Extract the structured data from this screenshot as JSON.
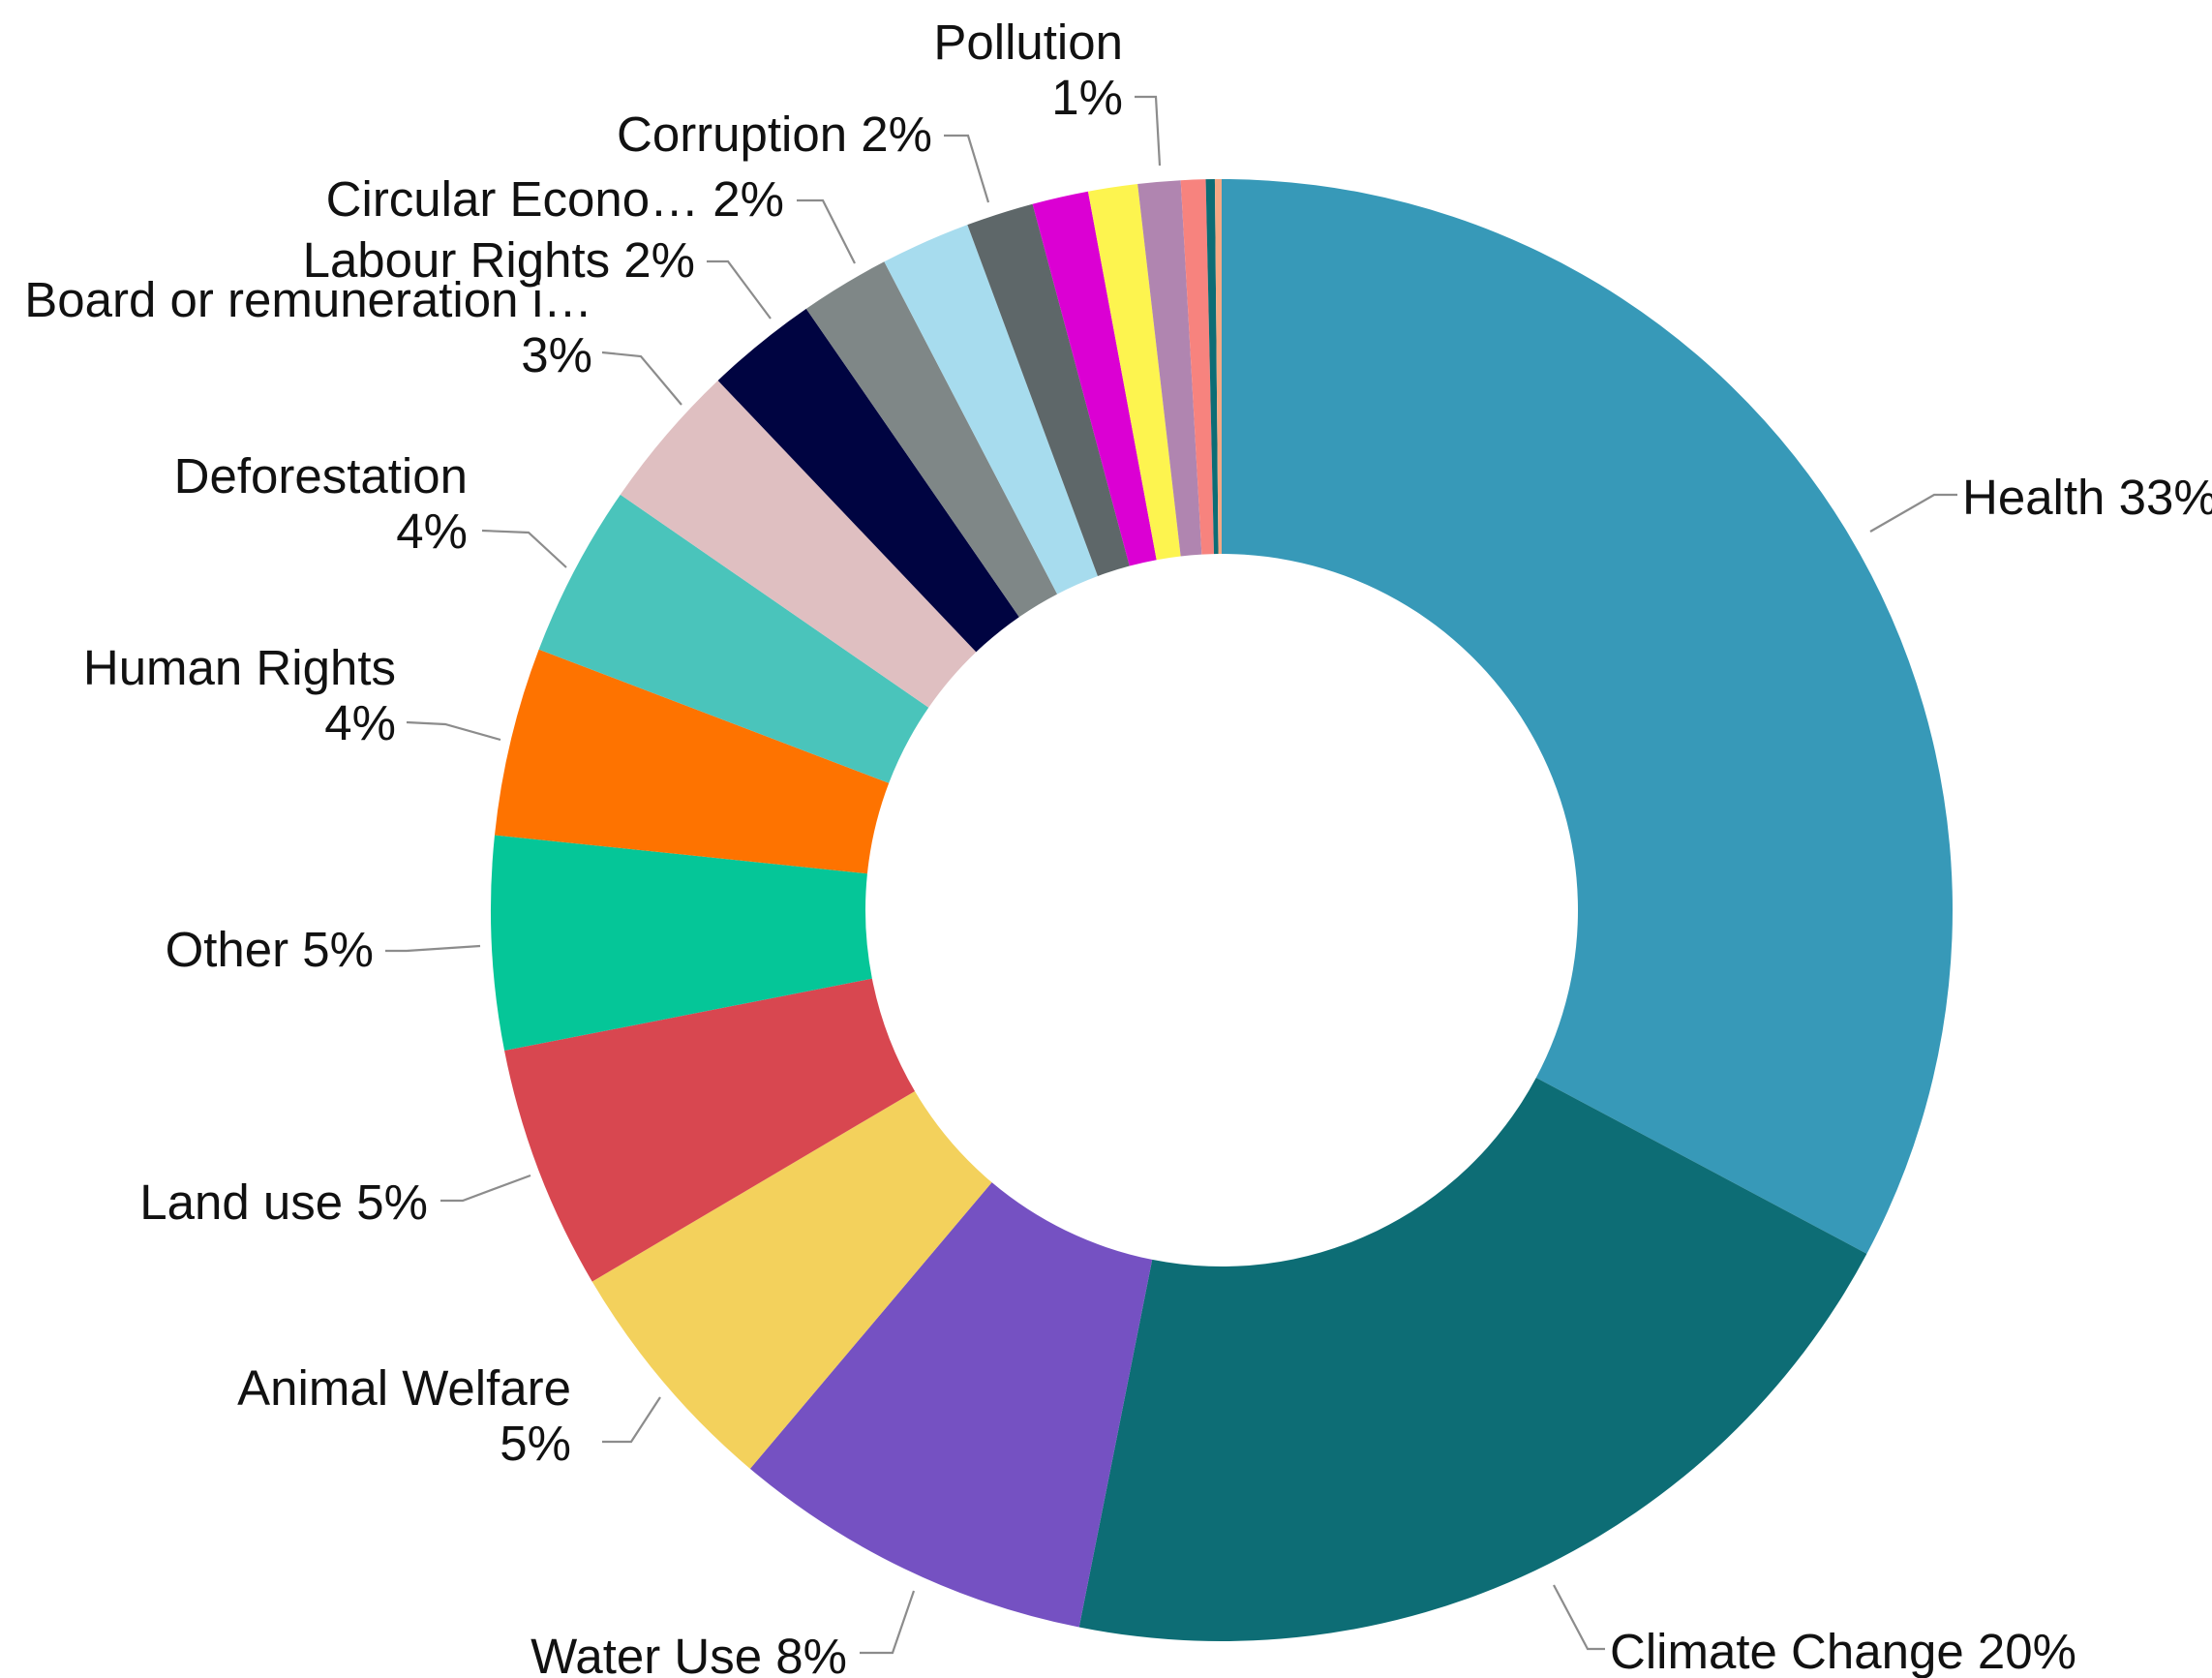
{
  "chart_data": {
    "type": "pie",
    "donut": true,
    "legend": "none",
    "slices": [
      {
        "name": "Health",
        "value": 33.05,
        "color": "#3799b8",
        "label_lines": [
          "Health 33%"
        ]
      },
      {
        "name": "Climate Change",
        "value": 20.5,
        "color": "#0d6d75",
        "label_lines": [
          "Climate Change 20%"
        ]
      },
      {
        "name": "Water Use",
        "value": 8.1,
        "color": "#7551c2",
        "label_lines": [
          "Water Use 8%"
        ]
      },
      {
        "name": "Animal Welfare",
        "value": 5.4,
        "color": "#f3d15c",
        "label_lines": [
          "Animal Welfare",
          "5%"
        ]
      },
      {
        "name": "Land use",
        "value": 5.45,
        "color": "#d84750",
        "label_lines": [
          "Land use 5%"
        ]
      },
      {
        "name": "Other",
        "value": 4.75,
        "color": "#05c698",
        "label_lines": [
          "Other 5%"
        ]
      },
      {
        "name": "Human Rights",
        "value": 4.2,
        "color": "#fe7300",
        "label_lines": [
          "Human Rights",
          "4%"
        ]
      },
      {
        "name": "Deforestation",
        "value": 3.85,
        "color": "#4ac4bb",
        "label_lines": [
          "Deforestation",
          "4%"
        ]
      },
      {
        "name": "Board or remuneration i…",
        "value": 3.3,
        "color": "#dfbfc1",
        "label_lines": [
          "Board or remuneration i…",
          "3%"
        ]
      },
      {
        "name": "Labour Rights",
        "value": 2.5,
        "color": "#000441",
        "label_lines": [
          "Labour Rights 2%"
        ]
      },
      {
        "name": "Circular Econo…",
        "value": 2.0,
        "color": "#7f8787",
        "label_lines": [
          "Circular Econo… 2%"
        ]
      },
      {
        "name": "Corruption",
        "value": 2.0,
        "color": "#a7dcee",
        "label_lines": [
          "Corruption 2%"
        ]
      },
      {
        "name": "",
        "value": 1.5,
        "color": "#5e6769",
        "label_lines": []
      },
      {
        "name": "",
        "value": 1.25,
        "color": "#db00d3",
        "label_lines": []
      },
      {
        "name": "",
        "value": 1.1,
        "color": "#fdf44f",
        "label_lines": []
      },
      {
        "name": "Pollution",
        "value": 0.95,
        "color": "#b085b0",
        "label_lines": [
          "Pollution",
          "1%"
        ]
      },
      {
        "name": "",
        "value": 0.55,
        "color": "#f7837e",
        "label_lines": []
      },
      {
        "name": "",
        "value": 0.2,
        "color": "#0d6d75",
        "label_lines": []
      },
      {
        "name": "",
        "value": 0.15,
        "color": "#f5a884",
        "label_lines": []
      }
    ]
  }
}
